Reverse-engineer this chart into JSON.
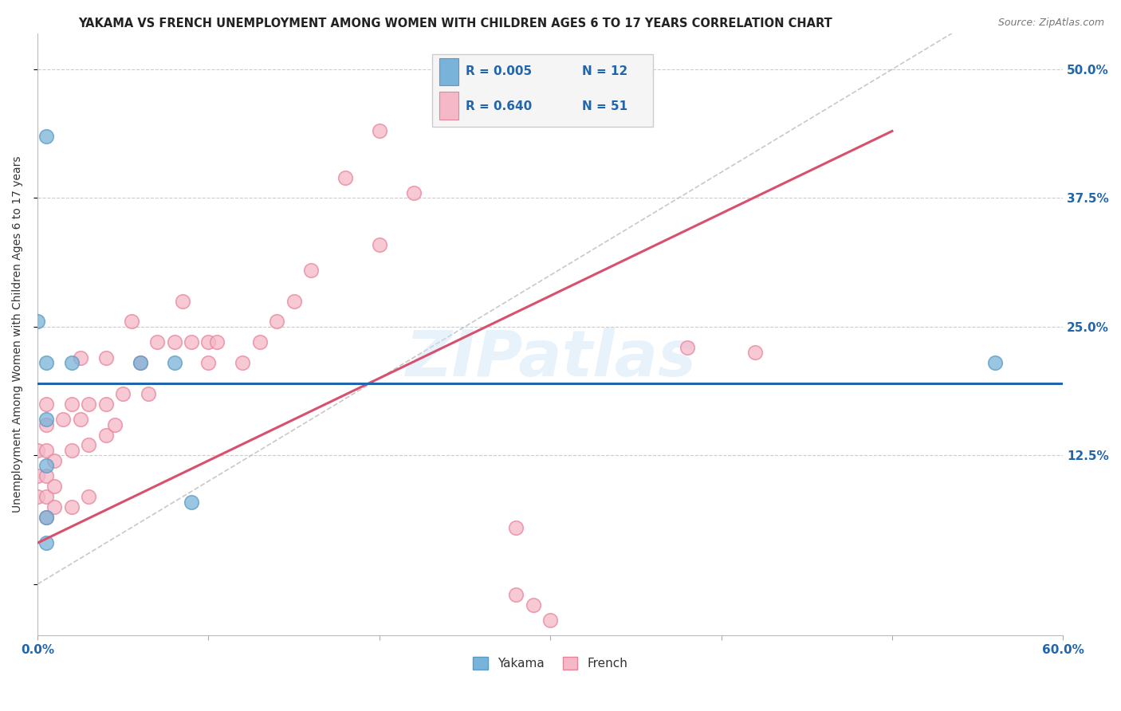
{
  "title": "YAKAMA VS FRENCH UNEMPLOYMENT AMONG WOMEN WITH CHILDREN AGES 6 TO 17 YEARS CORRELATION CHART",
  "source": "Source: ZipAtlas.com",
  "ylabel": "Unemployment Among Women with Children Ages 6 to 17 years",
  "xlim": [
    0.0,
    0.6
  ],
  "ylim": [
    -0.05,
    0.535
  ],
  "yakama_color": "#7ab3d9",
  "french_color": "#f5b8c8",
  "yakama_edge_color": "#5a9bc4",
  "french_edge_color": "#e8849a",
  "yakama_line_color": "#2166ac",
  "french_line_color": "#d94f6e",
  "ref_line_color": "#bbbbbb",
  "grid_color": "#cccccc",
  "watermark": "ZIPatlas",
  "legend_box_color": "#f5f5f5",
  "legend_border_color": "#cccccc",
  "yakama_points": [
    [
      0.005,
      0.435
    ],
    [
      0.0,
      0.255
    ],
    [
      0.005,
      0.215
    ],
    [
      0.02,
      0.215
    ],
    [
      0.06,
      0.215
    ],
    [
      0.08,
      0.215
    ],
    [
      0.09,
      0.08
    ],
    [
      0.005,
      0.16
    ],
    [
      0.005,
      0.115
    ],
    [
      0.005,
      0.065
    ],
    [
      0.005,
      0.04
    ],
    [
      0.56,
      0.215
    ]
  ],
  "french_points": [
    [
      0.0,
      0.085
    ],
    [
      0.0,
      0.105
    ],
    [
      0.0,
      0.13
    ],
    [
      0.005,
      0.065
    ],
    [
      0.005,
      0.085
    ],
    [
      0.005,
      0.105
    ],
    [
      0.005,
      0.13
    ],
    [
      0.005,
      0.155
    ],
    [
      0.005,
      0.175
    ],
    [
      0.01,
      0.075
    ],
    [
      0.01,
      0.095
    ],
    [
      0.01,
      0.12
    ],
    [
      0.015,
      0.16
    ],
    [
      0.02,
      0.075
    ],
    [
      0.02,
      0.13
    ],
    [
      0.02,
      0.175
    ],
    [
      0.025,
      0.16
    ],
    [
      0.025,
      0.22
    ],
    [
      0.03,
      0.085
    ],
    [
      0.03,
      0.135
    ],
    [
      0.03,
      0.175
    ],
    [
      0.04,
      0.145
    ],
    [
      0.04,
      0.175
    ],
    [
      0.04,
      0.22
    ],
    [
      0.045,
      0.155
    ],
    [
      0.05,
      0.185
    ],
    [
      0.055,
      0.255
    ],
    [
      0.06,
      0.215
    ],
    [
      0.065,
      0.185
    ],
    [
      0.07,
      0.235
    ],
    [
      0.08,
      0.235
    ],
    [
      0.085,
      0.275
    ],
    [
      0.09,
      0.235
    ],
    [
      0.1,
      0.235
    ],
    [
      0.1,
      0.215
    ],
    [
      0.105,
      0.235
    ],
    [
      0.12,
      0.215
    ],
    [
      0.13,
      0.235
    ],
    [
      0.14,
      0.255
    ],
    [
      0.15,
      0.275
    ],
    [
      0.16,
      0.305
    ],
    [
      0.18,
      0.395
    ],
    [
      0.2,
      0.33
    ],
    [
      0.22,
      0.38
    ],
    [
      0.2,
      0.44
    ],
    [
      0.28,
      0.055
    ],
    [
      0.28,
      -0.01
    ],
    [
      0.29,
      -0.02
    ],
    [
      0.3,
      -0.035
    ],
    [
      0.38,
      0.23
    ],
    [
      0.42,
      0.225
    ]
  ],
  "yakama_reg": [
    0.0,
    0.195,
    0.6,
    0.195
  ],
  "french_reg": [
    0.0,
    0.04,
    0.5,
    0.44
  ],
  "ref_diag": [
    0.0,
    0.0,
    0.535,
    0.535
  ],
  "yticks": [
    0.0,
    0.125,
    0.25,
    0.375,
    0.5
  ],
  "ytick_labels": [
    "",
    "12.5%",
    "25.0%",
    "37.5%",
    "50.0%"
  ],
  "xtick_labels_show": [
    "0.0%",
    "60.0%"
  ],
  "title_fontsize": 10.5,
  "axis_label_fontsize": 10,
  "tick_fontsize": 11,
  "source_fontsize": 9
}
